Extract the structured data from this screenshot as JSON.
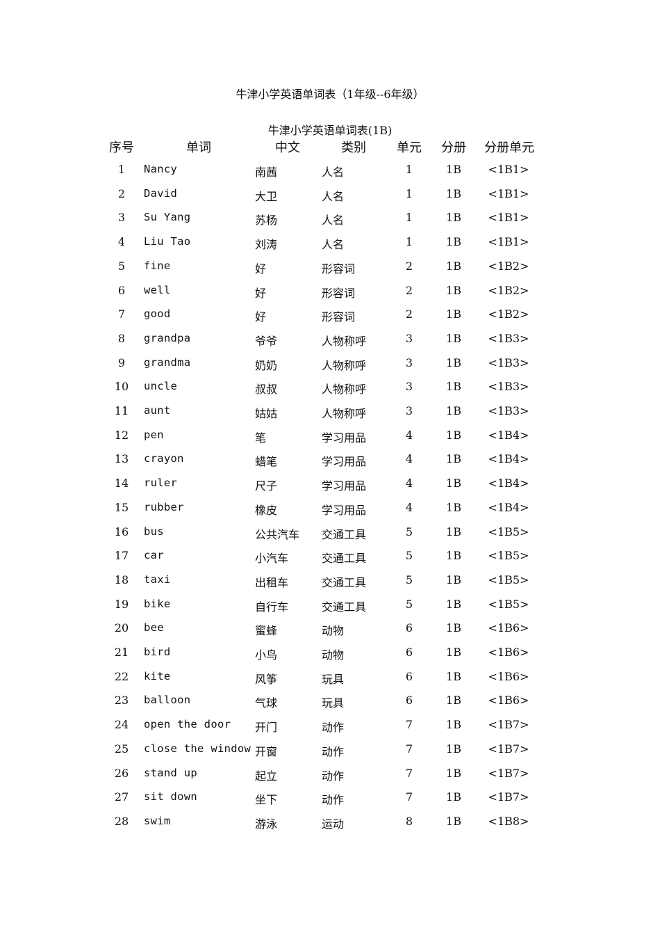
{
  "document": {
    "title": "牛津小学英语单词表（1年级--6年级）",
    "table_title": "牛津小学英语单词表(1B)"
  },
  "table": {
    "headers": [
      "序号",
      "单词",
      "中文",
      "类别",
      "单元",
      "分册",
      "分册单元"
    ],
    "rows": [
      [
        "1",
        "Nancy",
        "南茜",
        "人名",
        "1",
        "1B",
        "<1B1>"
      ],
      [
        "2",
        "David",
        "大卫",
        "人名",
        "1",
        "1B",
        "<1B1>"
      ],
      [
        "3",
        "Su Yang",
        "苏杨",
        "人名",
        "1",
        "1B",
        "<1B1>"
      ],
      [
        "4",
        "Liu Tao",
        "刘涛",
        "人名",
        "1",
        "1B",
        "<1B1>"
      ],
      [
        "5",
        "fine",
        "好",
        "形容词",
        "2",
        "1B",
        "<1B2>"
      ],
      [
        "6",
        "well",
        "好",
        "形容词",
        "2",
        "1B",
        "<1B2>"
      ],
      [
        "7",
        "good",
        "好",
        "形容词",
        "2",
        "1B",
        "<1B2>"
      ],
      [
        "8",
        "grandpa",
        "爷爷",
        "人物称呼",
        "3",
        "1B",
        "<1B3>"
      ],
      [
        "9",
        "grandma",
        "奶奶",
        "人物称呼",
        "3",
        "1B",
        "<1B3>"
      ],
      [
        "10",
        "uncle",
        "叔叔",
        "人物称呼",
        "3",
        "1B",
        "<1B3>"
      ],
      [
        "11",
        "aunt",
        "姑姑",
        "人物称呼",
        "3",
        "1B",
        "<1B3>"
      ],
      [
        "12",
        "pen",
        "笔",
        "学习用品",
        "4",
        "1B",
        "<1B4>"
      ],
      [
        "13",
        "crayon",
        "蜡笔",
        "学习用品",
        "4",
        "1B",
        "<1B4>"
      ],
      [
        "14",
        "ruler",
        "尺子",
        "学习用品",
        "4",
        "1B",
        "<1B4>"
      ],
      [
        "15",
        "rubber",
        "橡皮",
        "学习用品",
        "4",
        "1B",
        "<1B4>"
      ],
      [
        "16",
        "bus",
        "公共汽车",
        "交通工具",
        "5",
        "1B",
        "<1B5>"
      ],
      [
        "17",
        "car",
        "小汽车",
        "交通工具",
        "5",
        "1B",
        "<1B5>"
      ],
      [
        "18",
        "taxi",
        "出租车",
        "交通工具",
        "5",
        "1B",
        "<1B5>"
      ],
      [
        "19",
        "bike",
        "自行车",
        "交通工具",
        "5",
        "1B",
        "<1B5>"
      ],
      [
        "20",
        "bee",
        "蜜蜂",
        "动物",
        "6",
        "1B",
        "<1B6>"
      ],
      [
        "21",
        "bird",
        "小鸟",
        "动物",
        "6",
        "1B",
        "<1B6>"
      ],
      [
        "22",
        "kite",
        "风筝",
        "玩具",
        "6",
        "1B",
        "<1B6>"
      ],
      [
        "23",
        "balloon",
        "气球",
        "玩具",
        "6",
        "1B",
        "<1B6>"
      ],
      [
        "24",
        "open the door",
        "开门",
        "动作",
        "7",
        "1B",
        "<1B7>"
      ],
      [
        "25",
        "close the window",
        "开窗",
        "动作",
        "7",
        "1B",
        "<1B7>"
      ],
      [
        "26",
        "stand up",
        "起立",
        "动作",
        "7",
        "1B",
        "<1B7>"
      ],
      [
        "27",
        "sit down",
        "坐下",
        "动作",
        "7",
        "1B",
        "<1B7>"
      ],
      [
        "28",
        "swim",
        "游泳",
        "运动",
        "8",
        "1B",
        "<1B8>"
      ]
    ]
  }
}
